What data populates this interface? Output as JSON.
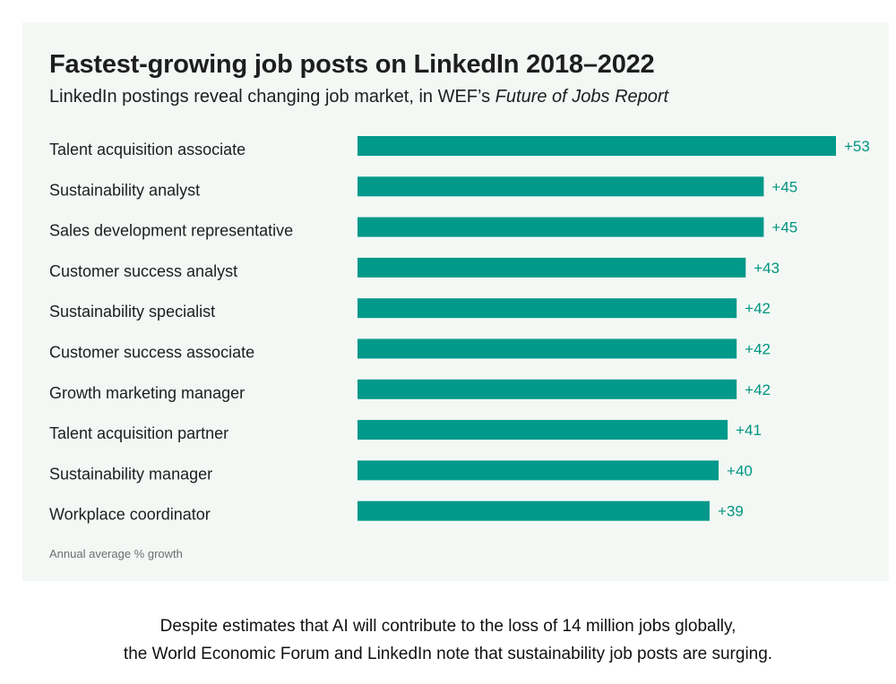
{
  "colors": {
    "bar": "#00998a",
    "value_label": "#00947f",
    "panel_background": "#f3f8f5",
    "text": "#1e1e1e"
  },
  "header": {
    "title": "Fastest-growing job posts on LinkedIn 2018–2022",
    "subtitle_plain": "LinkedIn postings reveal changing job market, in WEF’s ",
    "subtitle_italic": "Future of Jobs Report"
  },
  "footnote": "Annual average % growth",
  "caption": {
    "line1": "Despite estimates that AI will contribute to the loss of 14 million jobs globally,",
    "line2": "the World Economic Forum and LinkedIn note that sustainability job posts are surging."
  },
  "chart_data": {
    "type": "bar",
    "orientation": "horizontal",
    "title": "Fastest-growing job posts on LinkedIn 2018–2022",
    "subtitle": "LinkedIn postings reveal changing job market, in WEF’s Future of Jobs Report",
    "xlabel": "Annual average % growth",
    "ylabel": "",
    "grid": false,
    "legend": "none",
    "xlim": [
      0,
      53
    ],
    "categories": [
      "Talent acquisition associate",
      "Sustainability analyst",
      "Sales development representative",
      "Customer success analyst",
      "Sustainability specialist",
      "Customer success associate",
      "Growth marketing manager",
      "Talent acquisition partner",
      "Sustainability manager",
      "Workplace coordinator"
    ],
    "values": [
      53,
      45,
      45,
      43,
      42,
      42,
      42,
      41,
      40,
      39
    ],
    "value_labels": [
      "+53",
      "+45",
      "+45",
      "+43",
      "+42",
      "+42",
      "+42",
      "+41",
      "+40",
      "+39"
    ]
  }
}
